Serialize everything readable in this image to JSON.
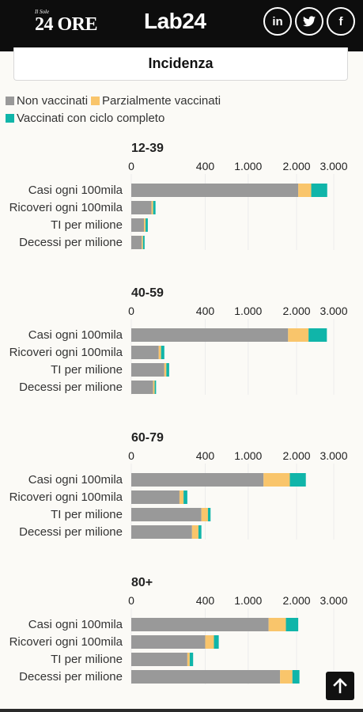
{
  "header": {
    "sole_small": "Il Sole",
    "sole_big": "24 ORE",
    "lab_logo": "Lab24",
    "social_icons": [
      "linkedin-icon",
      "twitter-icon",
      "facebook-icon"
    ],
    "social_labels": [
      "in",
      "t",
      "f"
    ]
  },
  "page": {
    "title": "Incidenza"
  },
  "colors": {
    "non_vaccinati": "#999999",
    "parziali": "#f9c56b",
    "completi": "#10b5a9"
  },
  "legend": {
    "items": [
      {
        "label": "Non vaccinati",
        "color": "#999999"
      },
      {
        "label": "Parzialmente vaccinati",
        "color": "#f9c56b"
      },
      {
        "label": "Vaccinati con ciclo completo",
        "color": "#10b5a9"
      }
    ]
  },
  "chart_data": [
    {
      "type": "bar",
      "orientation": "horizontal",
      "stacked": true,
      "title": "12-39",
      "categories": [
        "Casi ogni 100mila",
        "Ricoveri ogni 100mila",
        "TI per milione",
        "Decessi per milione"
      ],
      "series": [
        {
          "name": "Non vaccinati",
          "values": [
            2040,
            30,
            12,
            8
          ]
        },
        {
          "name": "Parzialmente vaccinati",
          "values": [
            330,
            5,
            3,
            2
          ]
        },
        {
          "name": "Vaccinati con ciclo completo",
          "values": [
            440,
            8,
            5,
            3
          ]
        }
      ],
      "xlim": [
        0,
        3000
      ],
      "xticks": [
        0,
        400,
        1000,
        2000,
        3000
      ],
      "xtick_labels": [
        "0",
        "400",
        "1.000",
        "2.000",
        "3.000"
      ],
      "scale": "sqrt",
      "grid": true
    },
    {
      "type": "bar",
      "orientation": "horizontal",
      "stacked": true,
      "title": "40-59",
      "categories": [
        "Casi ogni 100mila",
        "Ricoveri ogni 100mila",
        "TI per milione",
        "Decessi per milione"
      ],
      "series": [
        {
          "name": "Non vaccinati",
          "values": [
            1800,
            55,
            80,
            35
          ]
        },
        {
          "name": "Parzialmente vaccinati",
          "values": [
            500,
            10,
            10,
            5
          ]
        },
        {
          "name": "Vaccinati con ciclo completo",
          "values": [
            500,
            15,
            15,
            5
          ]
        }
      ],
      "xlim": [
        0,
        3000
      ],
      "xticks": [
        0,
        400,
        1000,
        2000,
        3000
      ],
      "xtick_labels": [
        "0",
        "400",
        "1.000",
        "2.000",
        "3.000"
      ],
      "scale": "sqrt",
      "grid": true
    },
    {
      "type": "bar",
      "orientation": "horizontal",
      "stacked": true,
      "title": "60-79",
      "categories": [
        "Casi ogni 100mila",
        "Ricoveri ogni 100mila",
        "TI per milione",
        "Decessi per milione"
      ],
      "series": [
        {
          "name": "Non vaccinati",
          "values": [
            1280,
            170,
            360,
            270
          ]
        },
        {
          "name": "Parzialmente vaccinati",
          "values": [
            560,
            30,
            70,
            60
          ]
        },
        {
          "name": "Vaccinati con ciclo completo",
          "values": [
            390,
            30,
            30,
            30
          ]
        }
      ],
      "xlim": [
        0,
        3000
      ],
      "xticks": [
        0,
        400,
        1000,
        2000,
        3000
      ],
      "xtick_labels": [
        "0",
        "400",
        "1.000",
        "2.000",
        "3.000"
      ],
      "scale": "sqrt",
      "grid": true
    },
    {
      "type": "bar",
      "orientation": "horizontal",
      "stacked": true,
      "title": "80+",
      "categories": [
        "Casi ogni 100mila",
        "Ricoveri ogni 100mila",
        "TI per milione",
        "Decessi per milione"
      ],
      "series": [
        {
          "name": "Non vaccinati",
          "values": [
            1380,
            400,
            230,
            1620
          ]
        },
        {
          "name": "Parzialmente vaccinati",
          "values": [
            370,
            100,
            20,
            280
          ]
        },
        {
          "name": "Vaccinati con ciclo completo",
          "values": [
            290,
            60,
            30,
            170
          ]
        }
      ],
      "xlim": [
        0,
        3000
      ],
      "xticks": [
        0,
        400,
        1000,
        2000,
        3000
      ],
      "xtick_labels": [
        "0",
        "400",
        "1.000",
        "2.000",
        "3.000"
      ],
      "scale": "sqrt",
      "grid": true
    }
  ]
}
